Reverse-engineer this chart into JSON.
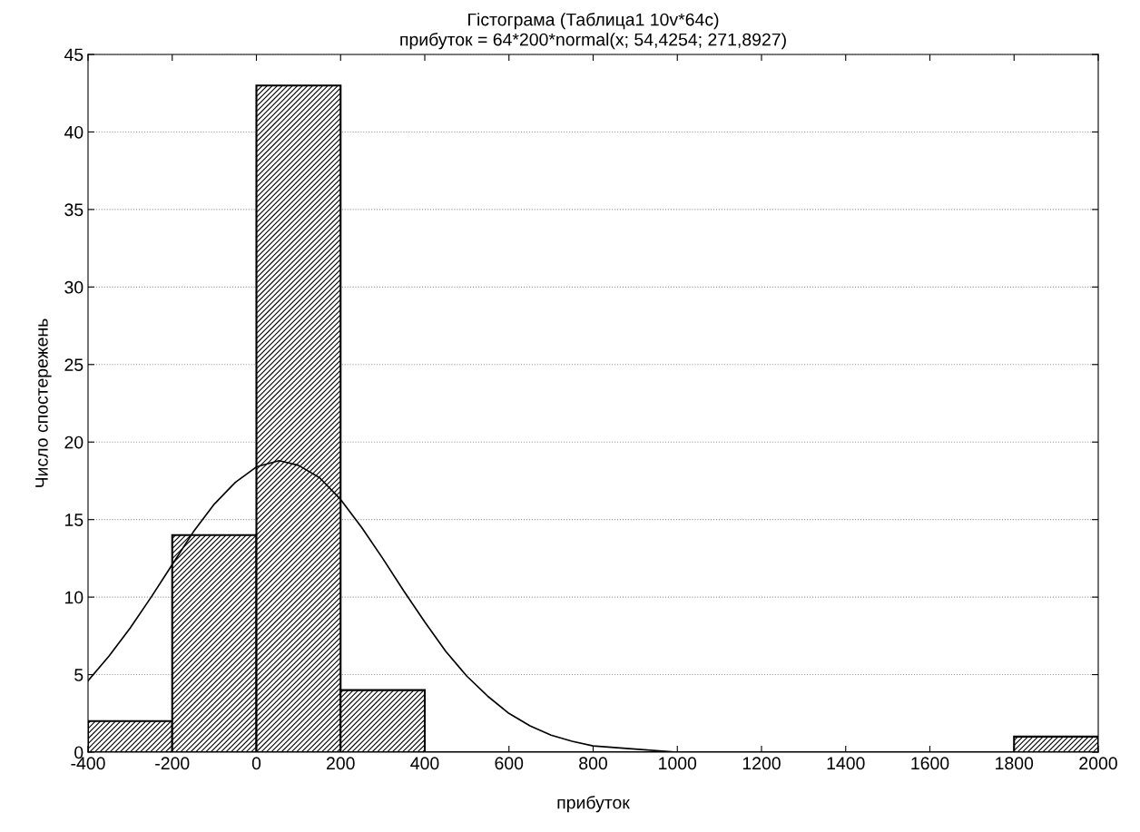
{
  "chart_data": {
    "type": "histogram",
    "title": "Гістограма (Таблица1 10v*64c)",
    "subtitle": "прибуток = 64*200*normal(x; 54,4254; 271,8927)",
    "xlabel": "прибуток",
    "ylabel": "Число спостережень",
    "bins": [
      -400,
      -200,
      0,
      200,
      400,
      600,
      800,
      1000,
      1200,
      1400,
      1600,
      1800,
      2000
    ],
    "values": [
      2,
      14,
      43,
      4,
      0,
      0,
      0,
      0,
      0,
      0,
      0,
      1
    ],
    "color": "#000000",
    "series": [
      {
        "type": "line",
        "color": "#000000",
        "x": [
          -400,
          -350,
          -300,
          -250,
          -200,
          -150,
          -100,
          -50,
          0,
          54,
          100,
          150,
          200,
          250,
          300,
          350,
          400,
          450,
          500,
          550,
          600,
          650,
          700,
          750,
          800,
          900,
          1000,
          1100,
          1200,
          2000
        ],
        "values": [
          4.6,
          6.2,
          8.0,
          10.0,
          12.1,
          14.2,
          16.0,
          17.4,
          18.4,
          18.8,
          18.5,
          17.7,
          16.3,
          14.5,
          12.5,
          10.4,
          8.4,
          6.5,
          4.9,
          3.6,
          2.5,
          1.7,
          1.1,
          0.7,
          0.4,
          0.2,
          0.0,
          0.0,
          0.0,
          0.0
        ]
      }
    ],
    "xlim": [
      -400,
      2000
    ],
    "xticks": [
      -400,
      -200,
      0,
      200,
      400,
      600,
      800,
      1000,
      1200,
      1400,
      1600,
      1800,
      2000
    ],
    "ylim": [
      0,
      45
    ],
    "yticks": [
      0,
      5,
      10,
      15,
      20,
      25,
      30,
      35,
      40,
      45
    ],
    "grid": "y",
    "line_style": "solid",
    "marker": "none"
  }
}
